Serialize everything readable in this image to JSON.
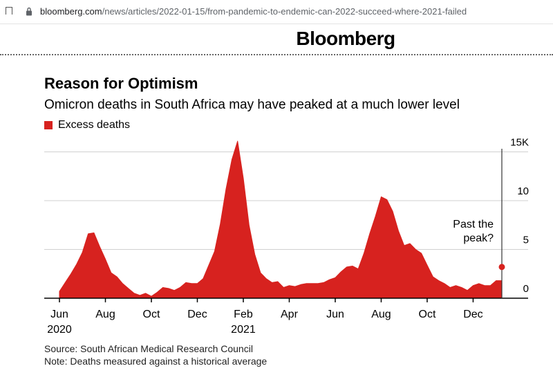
{
  "browser": {
    "url_host": "bloomberg.com",
    "url_path": "/news/articles/2022-01-15/from-pandemic-to-endemic-can-2022-succeed-where-2021-failed"
  },
  "brand": "Bloomberg",
  "colors": {
    "series": "#d7221f",
    "grid": "#d0d0d0",
    "axis": "#000000"
  },
  "chart_data": {
    "type": "area",
    "title": "Reason for Optimism",
    "subtitle": "Omicron deaths in South Africa may have peaked at a much lower level",
    "legend": [
      "Excess deaths"
    ],
    "series": [
      {
        "name": "Excess deaths",
        "x": [
          0,
          0.25,
          0.5,
          0.75,
          1.0,
          1.25,
          1.5,
          1.75,
          2.0,
          2.25,
          2.5,
          2.75,
          3.0,
          3.25,
          3.5,
          3.75,
          4.0,
          4.25,
          4.5,
          4.75,
          5.0,
          5.25,
          5.5,
          5.75,
          6.0,
          6.25,
          6.5,
          6.75,
          7.0,
          7.25,
          7.5,
          7.75,
          8.0,
          8.25,
          8.5,
          8.75,
          9.0,
          9.25,
          9.5,
          9.75,
          10.0,
          10.25,
          10.5,
          10.75,
          11.0,
          11.25,
          11.5,
          11.75,
          12.0,
          12.25,
          12.5,
          12.75,
          13.0,
          13.25,
          13.5,
          13.75,
          14.0,
          14.25,
          14.5,
          14.75,
          15.0,
          15.25,
          15.5,
          15.75,
          16.0,
          16.25,
          16.5,
          16.75,
          17.0,
          17.25,
          17.5,
          17.75,
          18.0,
          18.25,
          18.5,
          18.75,
          19.0,
          19.25
        ],
        "values": [
          0.7,
          1.6,
          2.5,
          3.5,
          4.7,
          6.6,
          6.7,
          5.3,
          4.0,
          2.6,
          2.2,
          1.5,
          1.0,
          0.5,
          0.3,
          0.5,
          0.2,
          0.6,
          1.1,
          1.0,
          0.8,
          1.1,
          1.6,
          1.5,
          1.5,
          2.0,
          3.4,
          4.8,
          7.6,
          11.2,
          14.2,
          16.1,
          12.3,
          7.5,
          4.5,
          2.6,
          2.0,
          1.6,
          1.7,
          1.1,
          1.3,
          1.2,
          1.4,
          1.5,
          1.5,
          1.5,
          1.6,
          1.9,
          2.1,
          2.7,
          3.2,
          3.3,
          3.0,
          4.6,
          6.6,
          8.4,
          10.4,
          10.1,
          8.9,
          6.9,
          5.4,
          5.6,
          5.0,
          4.6,
          3.4,
          2.2,
          1.8,
          1.5,
          1.1,
          1.3,
          1.1,
          0.8,
          1.3,
          1.5,
          1.3,
          1.3,
          1.8,
          1.8
        ]
      }
    ],
    "x_range": [
      0,
      19.25
    ],
    "ylim": [
      0,
      16.5
    ],
    "y_ticks": [
      {
        "value": 0,
        "label": "0"
      },
      {
        "value": 5,
        "label": "5"
      },
      {
        "value": 10,
        "label": "10"
      },
      {
        "value": 15,
        "label": "15K"
      }
    ],
    "x_ticks": [
      {
        "value": 0,
        "label": "Jun",
        "year": "2020"
      },
      {
        "value": 2,
        "label": "Aug"
      },
      {
        "value": 4,
        "label": "Oct"
      },
      {
        "value": 6,
        "label": "Dec"
      },
      {
        "value": 8,
        "label": "Feb",
        "year": "2021"
      },
      {
        "value": 10,
        "label": "Apr"
      },
      {
        "value": 12,
        "label": "Jun"
      },
      {
        "value": 14,
        "label": "Aug"
      },
      {
        "value": 16,
        "label": "Oct"
      },
      {
        "value": 18,
        "label": "Dec"
      }
    ],
    "grid": true,
    "y_axis_side": "right",
    "annotation": {
      "lines": [
        "Past the",
        "peak?"
      ],
      "x": 19.25,
      "y": 3.2
    }
  },
  "footer": {
    "source": "Source: South African Medical Research Council",
    "note": "Note: Deaths measured against a historical average"
  }
}
